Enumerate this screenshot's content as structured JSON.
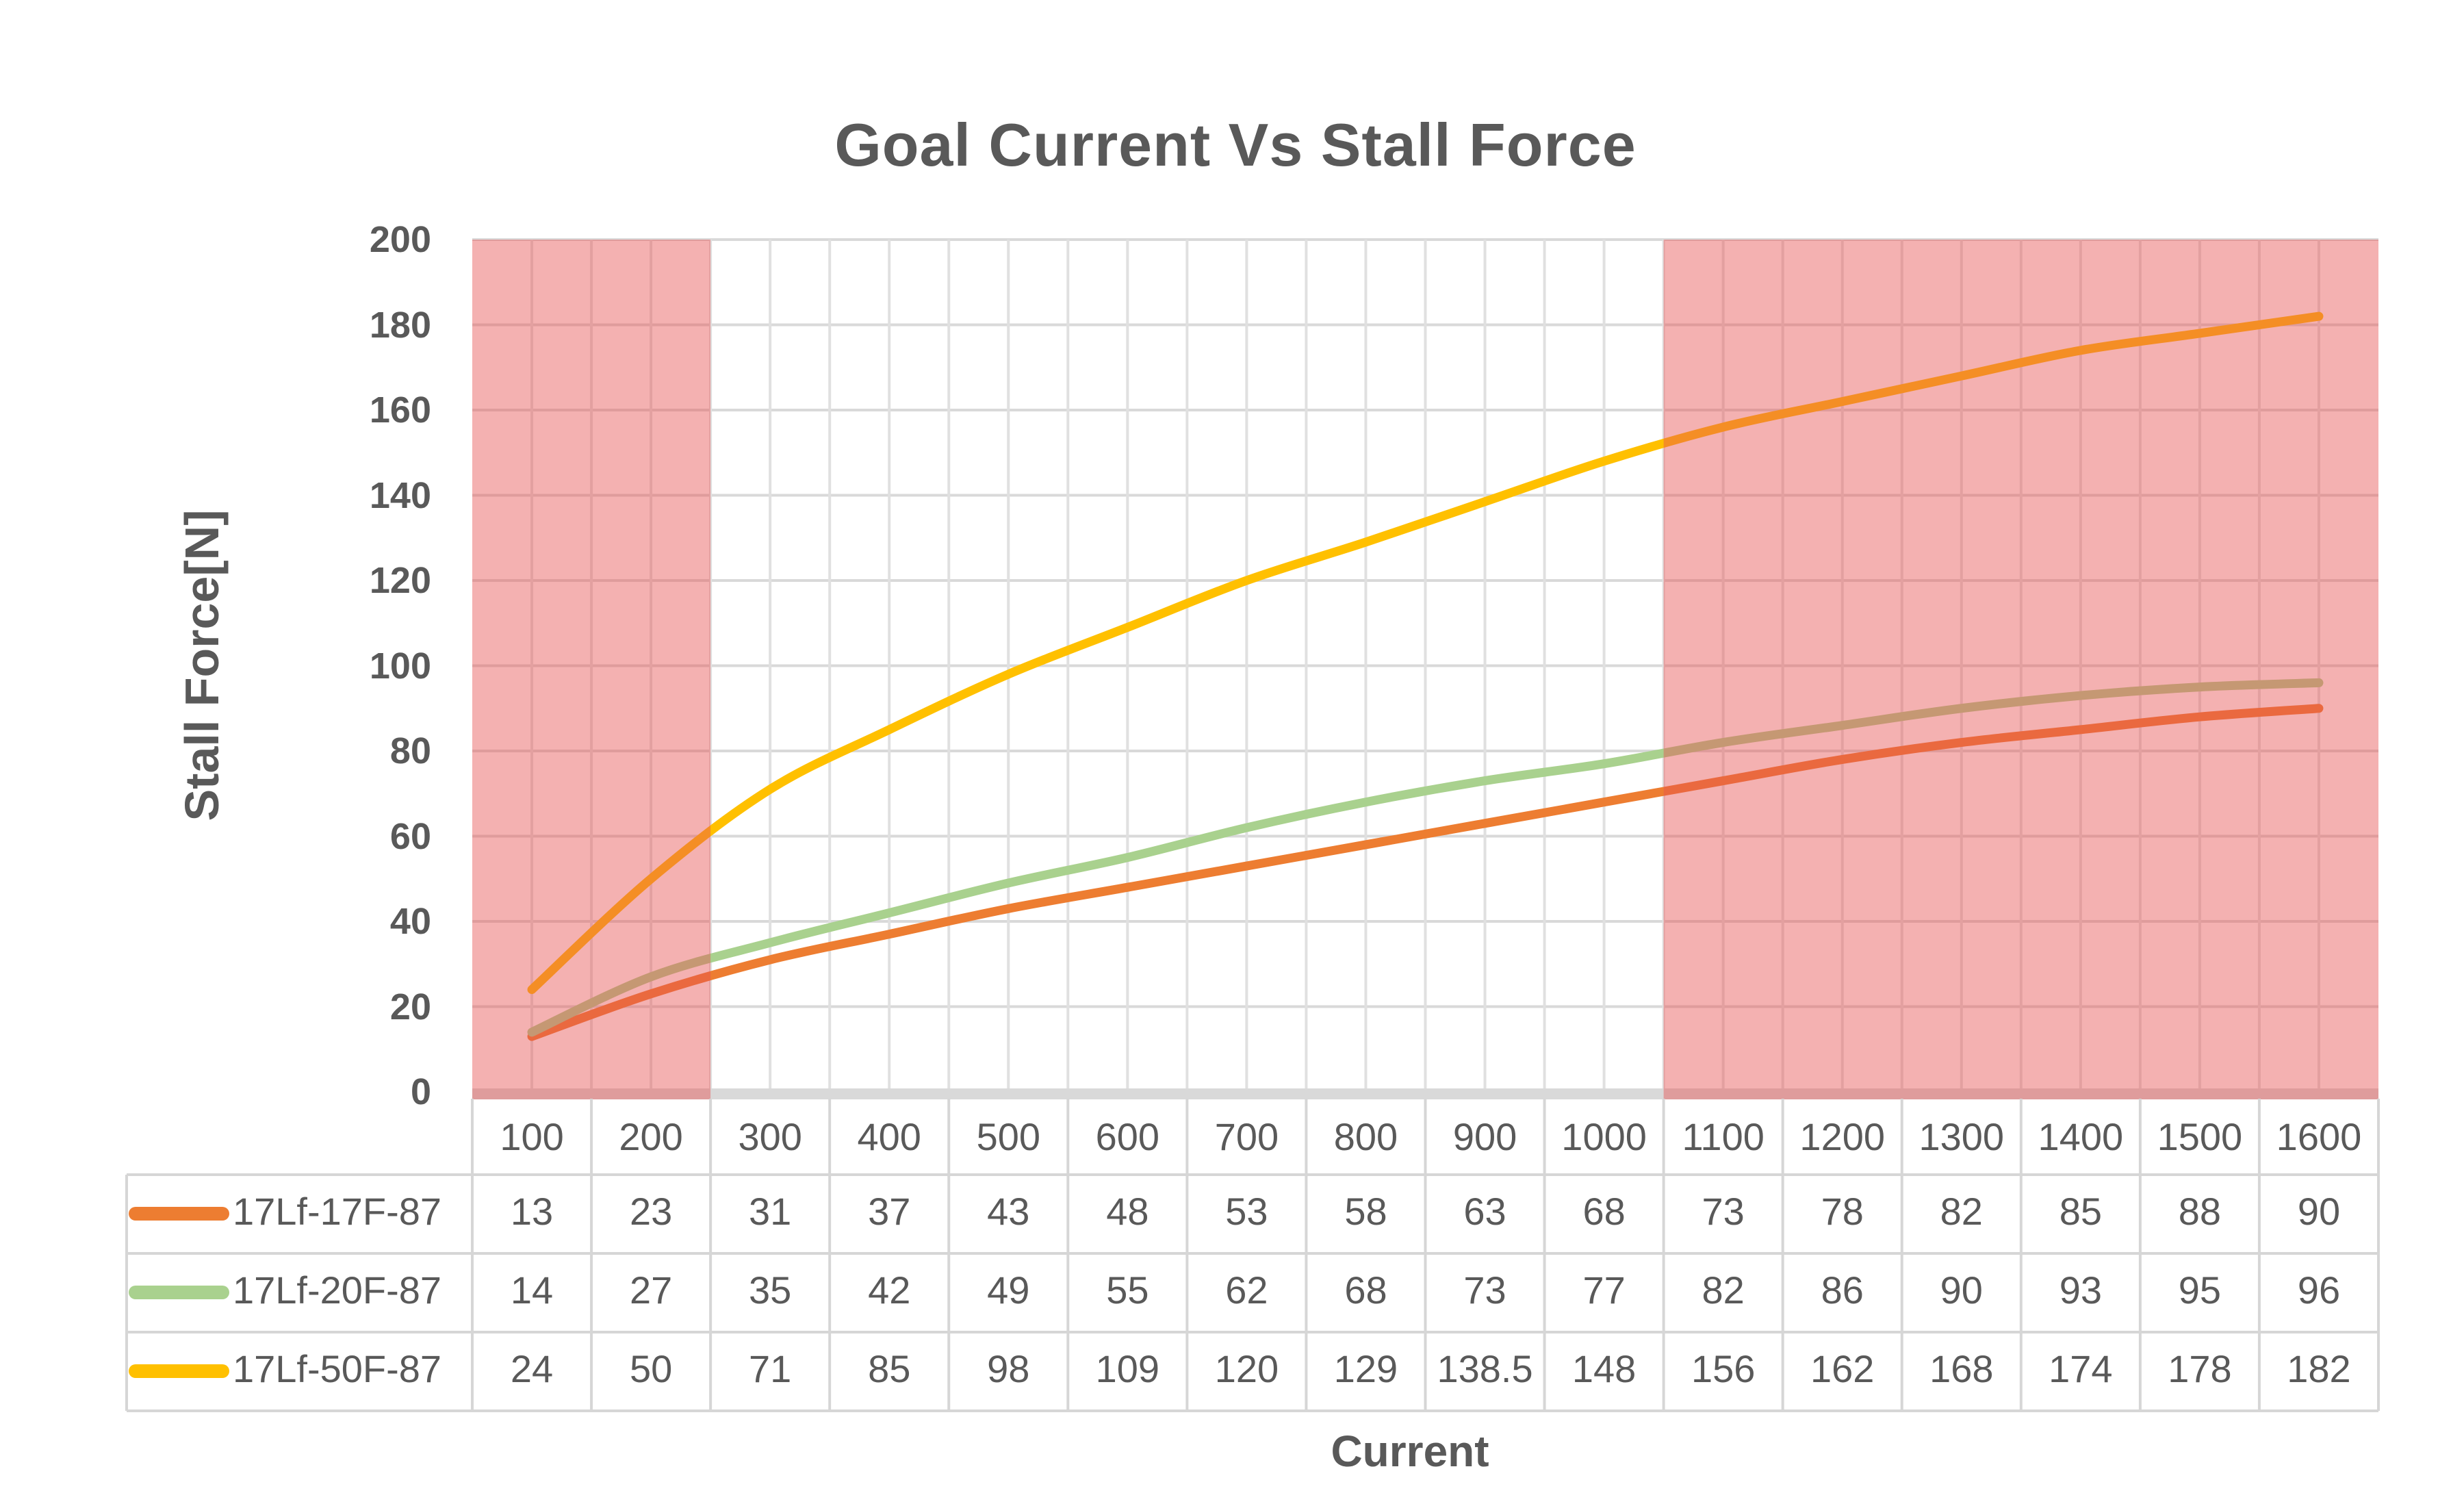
{
  "chart_data": {
    "type": "line",
    "title": "Goal Current Vs Stall Force",
    "xlabel": "Current",
    "ylabel": "Stall Force[N]",
    "x_categories": [
      100,
      200,
      300,
      400,
      500,
      600,
      700,
      800,
      900,
      1000,
      1100,
      1200,
      1300,
      1400,
      1500,
      1600
    ],
    "series": [
      {
        "name": "17Lf-17F-87",
        "color": "#ED7D31",
        "values": [
          13,
          23,
          31,
          37,
          43,
          48,
          53,
          58,
          63,
          68,
          73,
          78,
          82,
          85,
          88,
          90
        ]
      },
      {
        "name": "17Lf-20F-87",
        "color": "#A9D18E",
        "values": [
          14,
          27,
          35,
          42,
          49,
          55,
          62,
          68,
          73,
          77,
          82,
          86,
          90,
          93,
          95,
          96
        ]
      },
      {
        "name": "17Lf-50F-87",
        "color": "#FFC000",
        "values": [
          24,
          50,
          71,
          85,
          98,
          109,
          120,
          129,
          138.5,
          148,
          156,
          162,
          168,
          174,
          178,
          182
        ]
      }
    ],
    "ylim": [
      0,
      200
    ],
    "ytick_step": 20,
    "grid": true,
    "smooth_lines": true,
    "legend_position": "data-table-left",
    "data_table_shown": true,
    "shaded_regions": [
      {
        "name": "left-warning-band",
        "covers_categories": [
          100,
          200
        ],
        "from_col": 0,
        "to_col": 2,
        "color": "rgba(231,82,82,0.45)"
      },
      {
        "name": "right-warning-band",
        "covers_categories": [
          1100,
          1200,
          1300,
          1400,
          1500,
          1600
        ],
        "from_col": 10,
        "to_col": 16,
        "color": "rgba(231,82,82,0.45)"
      }
    ],
    "colors": {
      "text": "#595959",
      "h_gridline": "#D9D9D9",
      "v_gridline": "#E0E0E0",
      "axis_strip": "#D9D9D9",
      "table_border": "#D6D6D6",
      "background": "#FFFFFF"
    }
  }
}
